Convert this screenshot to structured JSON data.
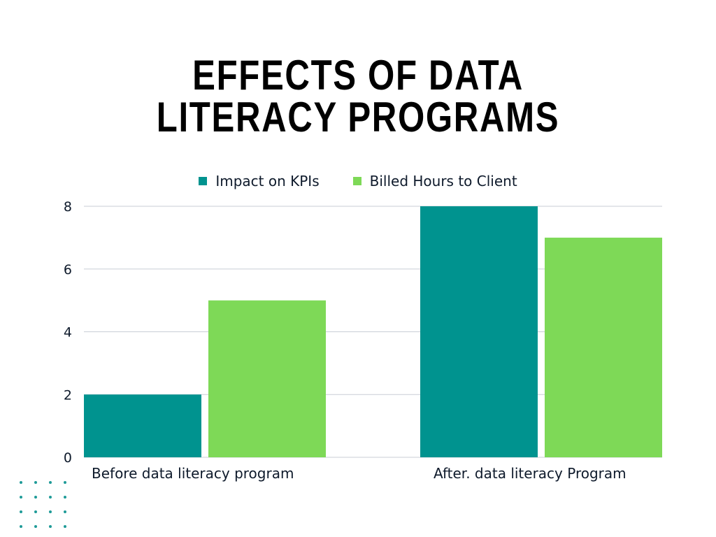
{
  "chart_data": {
    "type": "bar",
    "title_lines": [
      "EFFECTS OF DATA",
      "LITERACY PROGRAMS"
    ],
    "categories": [
      "Before data literacy program",
      "After. data literacy Program"
    ],
    "series": [
      {
        "name": "Impact on KPIs",
        "values": [
          2,
          8
        ],
        "color": "#00938f"
      },
      {
        "name": "Billed Hours to Client",
        "values": [
          5,
          7
        ],
        "color": "#7ed957"
      }
    ],
    "ylim": [
      0,
      8
    ],
    "yticks": [
      "0",
      "2",
      "4",
      "6",
      "8"
    ],
    "grid": true,
    "legend_position": "top-center"
  }
}
